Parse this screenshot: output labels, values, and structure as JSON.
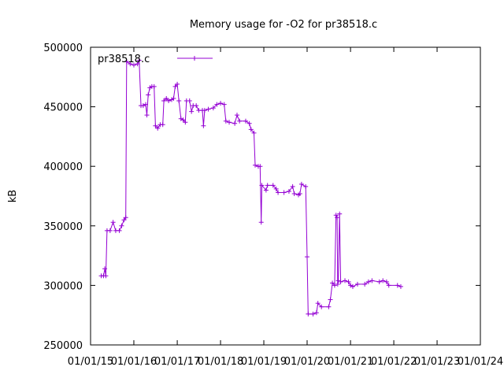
{
  "chart_data": {
    "type": "line",
    "title": "Memory usage for -O2 for pr38518.c",
    "xlabel": "",
    "ylabel": "kB",
    "ylim": [
      250000,
      500000
    ],
    "y_ticks": [
      250000,
      300000,
      350000,
      400000,
      450000,
      500000
    ],
    "y_tick_labels": [
      "250000",
      "300000",
      "350000",
      "400000",
      "450000",
      "500000"
    ],
    "xlim": [
      "2015-01-01",
      "2024-01-01"
    ],
    "x_ticks": [
      "2015-01-01",
      "2016-01-01",
      "2017-01-01",
      "2018-01-01",
      "2019-01-01",
      "2020-01-01",
      "2021-01-01",
      "2022-01-01",
      "2023-01-01",
      "2024-01-01"
    ],
    "x_tick_labels": [
      "01/01/15",
      "01/01/16",
      "01/01/17",
      "01/01/18",
      "01/01/19",
      "01/01/20",
      "01/01/21",
      "01/01/22",
      "01/01/23",
      "01/01/24"
    ],
    "grid": false,
    "legend_position": "top-left",
    "series": [
      {
        "name": "pr38518.c",
        "color": "#9400d3",
        "marker": "plus",
        "points": [
          [
            "2015-04-01",
            308000
          ],
          [
            "2015-04-20",
            308000
          ],
          [
            "2015-05-01",
            314000
          ],
          [
            "2015-05-10",
            308000
          ],
          [
            "2015-05-20",
            346000
          ],
          [
            "2015-06-15",
            346000
          ],
          [
            "2015-07-10",
            353000
          ],
          [
            "2015-08-01",
            346000
          ],
          [
            "2015-09-01",
            346000
          ],
          [
            "2015-09-20",
            350000
          ],
          [
            "2015-10-10",
            355000
          ],
          [
            "2015-10-25",
            357000
          ],
          [
            "2015-11-01",
            488000
          ],
          [
            "2015-12-01",
            486000
          ],
          [
            "2016-01-01",
            485000
          ],
          [
            "2016-02-01",
            486000
          ],
          [
            "2016-02-15",
            489000
          ],
          [
            "2016-03-01",
            451000
          ],
          [
            "2016-03-20",
            451000
          ],
          [
            "2016-04-10",
            452000
          ],
          [
            "2016-04-20",
            443000
          ],
          [
            "2016-05-01",
            460000
          ],
          [
            "2016-05-15",
            466000
          ],
          [
            "2016-06-01",
            467000
          ],
          [
            "2016-06-20",
            467000
          ],
          [
            "2016-07-01",
            434000
          ],
          [
            "2016-07-20",
            432000
          ],
          [
            "2016-08-10",
            435000
          ],
          [
            "2016-09-01",
            435000
          ],
          [
            "2016-09-10",
            455000
          ],
          [
            "2016-10-01",
            457000
          ],
          [
            "2016-10-20",
            455000
          ],
          [
            "2016-11-15",
            456000
          ],
          [
            "2016-12-01",
            457000
          ],
          [
            "2016-12-15",
            467000
          ],
          [
            "2017-01-01",
            469000
          ],
          [
            "2017-01-15",
            455000
          ],
          [
            "2017-02-01",
            440000
          ],
          [
            "2017-02-20",
            439000
          ],
          [
            "2017-03-10",
            437000
          ],
          [
            "2017-03-20",
            455000
          ],
          [
            "2017-04-15",
            455000
          ],
          [
            "2017-05-01",
            446000
          ],
          [
            "2017-05-15",
            451000
          ],
          [
            "2017-06-10",
            451000
          ],
          [
            "2017-07-01",
            447000
          ],
          [
            "2017-08-01",
            447000
          ],
          [
            "2017-08-10",
            434000
          ],
          [
            "2017-08-20",
            447000
          ],
          [
            "2017-09-20",
            448000
          ],
          [
            "2017-11-01",
            449000
          ],
          [
            "2017-12-01",
            452000
          ],
          [
            "2018-01-01",
            453000
          ],
          [
            "2018-02-01",
            452000
          ],
          [
            "2018-02-15",
            438000
          ],
          [
            "2018-03-15",
            437000
          ],
          [
            "2018-05-01",
            436000
          ],
          [
            "2018-05-20",
            443000
          ],
          [
            "2018-06-10",
            438000
          ],
          [
            "2018-08-01",
            438000
          ],
          [
            "2018-09-01",
            436000
          ],
          [
            "2018-09-15",
            431000
          ],
          [
            "2018-10-10",
            428000
          ],
          [
            "2018-10-20",
            401000
          ],
          [
            "2018-11-15",
            400000
          ],
          [
            "2018-12-01",
            400000
          ],
          [
            "2018-12-10",
            353000
          ],
          [
            "2018-12-15",
            384000
          ],
          [
            "2019-01-20",
            380000
          ],
          [
            "2019-02-01",
            384000
          ],
          [
            "2019-03-20",
            384000
          ],
          [
            "2019-04-15",
            381000
          ],
          [
            "2019-05-01",
            378000
          ],
          [
            "2019-06-20",
            378000
          ],
          [
            "2019-08-01",
            379000
          ],
          [
            "2019-09-01",
            383000
          ],
          [
            "2019-09-15",
            377000
          ],
          [
            "2019-10-20",
            376000
          ],
          [
            "2019-11-01",
            377000
          ],
          [
            "2019-11-15",
            385000
          ],
          [
            "2019-12-20",
            383000
          ],
          [
            "2020-01-01",
            324000
          ],
          [
            "2020-01-10",
            276000
          ],
          [
            "2020-02-20",
            276000
          ],
          [
            "2020-03-20",
            277000
          ],
          [
            "2020-04-01",
            285000
          ],
          [
            "2020-05-01",
            282000
          ],
          [
            "2020-07-01",
            282000
          ],
          [
            "2020-07-15",
            288000
          ],
          [
            "2020-08-01",
            302000
          ],
          [
            "2020-08-20",
            300000
          ],
          [
            "2020-09-01",
            359000
          ],
          [
            "2020-09-10",
            357000
          ],
          [
            "2020-09-15",
            301000
          ],
          [
            "2020-09-20",
            304000
          ],
          [
            "2020-10-01",
            360000
          ],
          [
            "2020-10-10",
            303000
          ],
          [
            "2020-11-15",
            304000
          ],
          [
            "2020-12-15",
            303000
          ],
          [
            "2021-01-01",
            300000
          ],
          [
            "2021-01-20",
            299000
          ],
          [
            "2021-03-01",
            301000
          ],
          [
            "2021-05-01",
            301000
          ],
          [
            "2021-06-01",
            303000
          ],
          [
            "2021-07-01",
            304000
          ],
          [
            "2021-09-01",
            303000
          ],
          [
            "2021-10-01",
            304000
          ],
          [
            "2021-11-01",
            303000
          ],
          [
            "2021-11-20",
            300000
          ],
          [
            "2022-02-01",
            300000
          ],
          [
            "2022-03-01",
            299000
          ]
        ]
      }
    ]
  }
}
